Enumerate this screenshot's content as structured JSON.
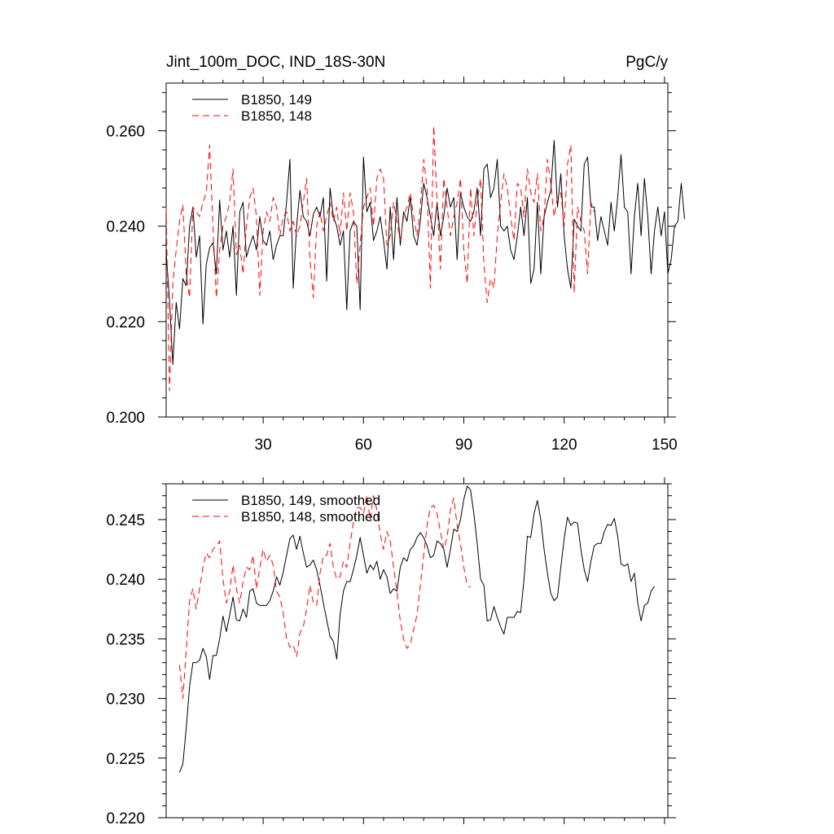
{
  "chart_data": [
    {
      "type": "line",
      "title": "Jint_100m_DOC, IND_18S-30N",
      "units": "PgC/y",
      "xlim": [
        1,
        151
      ],
      "ylim": [
        0.2,
        0.27
      ],
      "x_ticks": [
        30,
        60,
        90,
        120,
        150
      ],
      "x_tick_labels": [
        "30",
        "60",
        "90",
        "120",
        "150"
      ],
      "y_ticks": [
        0.2,
        0.22,
        0.24,
        0.26
      ],
      "y_tick_labels": [
        "0.200",
        "0.220",
        "0.240",
        "0.260"
      ],
      "legend_position": "top-left",
      "series": [
        {
          "name": "B1850, 149",
          "color": "#000000",
          "dash": "solid",
          "x_start": 1,
          "values": [
            0.2345,
            0.2245,
            0.211,
            0.224,
            0.2185,
            0.229,
            0.2275,
            0.24,
            0.244,
            0.2335,
            0.238,
            0.2195,
            0.232,
            0.2355,
            0.2365,
            0.23,
            0.2455,
            0.235,
            0.239,
            0.2335,
            0.24,
            0.2255,
            0.243,
            0.245,
            0.2335,
            0.236,
            0.238,
            0.235,
            0.242,
            0.237,
            0.236,
            0.239,
            0.233,
            0.236,
            0.238,
            0.238,
            0.245,
            0.254,
            0.227,
            0.24,
            0.2475,
            0.242,
            0.241,
            0.238,
            0.2425,
            0.244,
            0.242,
            0.246,
            0.2285,
            0.248,
            0.242,
            0.24,
            0.236,
            0.239,
            0.2225,
            0.239,
            0.241,
            0.24,
            0.2225,
            0.2545,
            0.243,
            0.245,
            0.237,
            0.239,
            0.242,
            0.237,
            0.231,
            0.244,
            0.233,
            0.246,
            0.236,
            0.243,
            0.241,
            0.246,
            0.238,
            0.236,
            0.241,
            0.249,
            0.246,
            0.242,
            0.238,
            0.245,
            0.238,
            0.242,
            0.248,
            0.244,
            0.246,
            0.233,
            0.247,
            0.244,
            0.242,
            0.241,
            0.243,
            0.248,
            0.238,
            0.252,
            0.253,
            0.246,
            0.248,
            0.254,
            0.24,
            0.239,
            0.24,
            0.235,
            0.233,
            0.238,
            0.244,
            0.238,
            0.246,
            0.228,
            0.231,
            0.245,
            0.23,
            0.242,
            0.245,
            0.2475,
            0.258,
            0.244,
            0.251,
            0.238,
            0.231,
            0.227,
            0.2415,
            0.24,
            0.239,
            0.253,
            0.2545,
            0.244,
            0.244,
            0.237,
            0.242,
            0.239,
            0.236,
            0.245,
            0.239,
            0.246,
            0.255,
            0.244,
            0.243,
            0.23,
            0.242,
            0.249,
            0.238,
            0.25,
            0.242,
            0.23,
            0.239,
            0.244,
            0.238,
            0.243,
            0.23,
            0.233,
            0.24,
            0.241,
            0.249,
            0.2415
          ]
        },
        {
          "name": "B1850, 148",
          "color": "#ff0000",
          "dash": "dashed",
          "x_start": 1,
          "values": [
            0.244,
            0.2055,
            0.228,
            0.235,
            0.241,
            0.2445,
            0.23,
            0.225,
            0.244,
            0.243,
            0.242,
            0.245,
            0.247,
            0.257,
            0.24,
            0.225,
            0.235,
            0.24,
            0.242,
            0.245,
            0.252,
            0.234,
            0.236,
            0.23,
            0.24,
            0.246,
            0.248,
            0.242,
            0.2255,
            0.239,
            0.243,
            0.241,
            0.246,
            0.244,
            0.238,
            0.242,
            0.243,
            0.239,
            0.241,
            0.238,
            0.24,
            0.245,
            0.25,
            0.233,
            0.225,
            0.24,
            0.243,
            0.239,
            0.242,
            0.245,
            0.241,
            0.244,
            0.238,
            0.247,
            0.239,
            0.247,
            0.243,
            0.228,
            0.236,
            0.244,
            0.246,
            0.248,
            0.24,
            0.25,
            0.252,
            0.25,
            0.236,
            0.238,
            0.245,
            0.241,
            0.237,
            0.242,
            0.244,
            0.247,
            0.242,
            0.238,
            0.244,
            0.254,
            0.248,
            0.227,
            0.261,
            0.245,
            0.231,
            0.25,
            0.244,
            0.238,
            0.242,
            0.245,
            0.25,
            0.235,
            0.228,
            0.248,
            0.238,
            0.245,
            0.25,
            0.232,
            0.224,
            0.229,
            0.227,
            0.238,
            0.245,
            0.251,
            0.248,
            0.242,
            0.237,
            0.249,
            0.248,
            0.242,
            0.252,
            0.247,
            0.245,
            0.251,
            0.239,
            0.242,
            0.254,
            0.249,
            0.242,
            0.246,
            0.247,
            0.24,
            0.253,
            0.257,
            0.226,
            0.244,
            0.241,
            0.239,
            0.23,
            0.245,
            0.243
          ]
        }
      ]
    },
    {
      "type": "line",
      "xlim": [
        1,
        151
      ],
      "ylim": [
        0.22,
        0.248
      ],
      "x_ticks": [
        30,
        60,
        90,
        120,
        150
      ],
      "x_tick_labels": [],
      "y_ticks": [
        0.22,
        0.225,
        0.23,
        0.235,
        0.24,
        0.245
      ],
      "y_tick_labels": [
        "0.220",
        "0.225",
        "0.230",
        "0.235",
        "0.240",
        "0.245"
      ],
      "legend_position": "top-left",
      "series": [
        {
          "name": "B1850, 149, smoothed",
          "color": "#000000",
          "dash": "solid",
          "x_start": 5,
          "values": [
            0.2238,
            0.2245,
            0.2275,
            0.231,
            0.233,
            0.233,
            0.2332,
            0.2342,
            0.2335,
            0.2316,
            0.2336,
            0.2336,
            0.235,
            0.2369,
            0.2356,
            0.237,
            0.2385,
            0.2366,
            0.2365,
            0.2375,
            0.2368,
            0.239,
            0.2392,
            0.238,
            0.2378,
            0.2378,
            0.2378,
            0.2382,
            0.239,
            0.2402,
            0.2395,
            0.2406,
            0.242,
            0.2434,
            0.2437,
            0.2425,
            0.2436,
            0.2422,
            0.241,
            0.2412,
            0.2416,
            0.2408,
            0.2395,
            0.238,
            0.2366,
            0.2352,
            0.2348,
            0.2333,
            0.237,
            0.239,
            0.2398,
            0.2398,
            0.2408,
            0.242,
            0.2435,
            0.242,
            0.2405,
            0.2412,
            0.2408,
            0.2415,
            0.24,
            0.2408,
            0.2402,
            0.2388,
            0.2392,
            0.239,
            0.241,
            0.2418,
            0.2415,
            0.2425,
            0.2428,
            0.2435,
            0.2439,
            0.2435,
            0.2428,
            0.2418,
            0.242,
            0.2432,
            0.243,
            0.2425,
            0.241,
            0.2425,
            0.2442,
            0.244,
            0.245,
            0.2467,
            0.2478,
            0.2475,
            0.2455,
            0.243,
            0.24,
            0.2395,
            0.2365,
            0.2366,
            0.2377,
            0.2368,
            0.236,
            0.2354,
            0.2368,
            0.2368,
            0.2368,
            0.2373,
            0.2372,
            0.24,
            0.2436,
            0.2435,
            0.2455,
            0.2466,
            0.245,
            0.2425,
            0.2405,
            0.2388,
            0.2382,
            0.2385,
            0.241,
            0.2434,
            0.2452,
            0.2445,
            0.2448,
            0.2447,
            0.2425,
            0.2408,
            0.2398,
            0.2415,
            0.2428,
            0.243,
            0.243,
            0.244,
            0.2446,
            0.2445,
            0.2451,
            0.2436,
            0.2413,
            0.2411,
            0.2413,
            0.2398,
            0.2405,
            0.238,
            0.2365,
            0.2378,
            0.238,
            0.239,
            0.2394
          ]
        },
        {
          "name": "B1850, 148, smoothed",
          "color": "#ff0000",
          "dash": "dashed",
          "x_start": 5,
          "values": [
            0.2328,
            0.23,
            0.234,
            0.2382,
            0.2392,
            0.2375,
            0.2392,
            0.241,
            0.2422,
            0.2418,
            0.2425,
            0.2428,
            0.2432,
            0.24,
            0.238,
            0.239,
            0.2412,
            0.2392,
            0.238,
            0.2398,
            0.241,
            0.2408,
            0.242,
            0.2392,
            0.241,
            0.2425,
            0.2415,
            0.242,
            0.2412,
            0.239,
            0.2385,
            0.2372,
            0.235,
            0.2343,
            0.2345,
            0.2335,
            0.2355,
            0.236,
            0.2375,
            0.2395,
            0.238,
            0.2378,
            0.2405,
            0.242,
            0.242,
            0.243,
            0.241,
            0.24,
            0.2402,
            0.2415,
            0.241,
            0.243,
            0.2448,
            0.246,
            0.246,
            0.2455,
            0.247,
            0.245,
            0.247,
            0.2458,
            0.2438,
            0.2425,
            0.244,
            0.2432,
            0.241,
            0.239,
            0.2365,
            0.235,
            0.2342,
            0.2345,
            0.2358,
            0.237,
            0.2395,
            0.242,
            0.2445,
            0.246,
            0.2462,
            0.2455,
            0.244,
            0.2425,
            0.2435,
            0.2458,
            0.2468,
            0.2445,
            0.243,
            0.241,
            0.2395,
            0.2393
          ]
        }
      ]
    }
  ]
}
